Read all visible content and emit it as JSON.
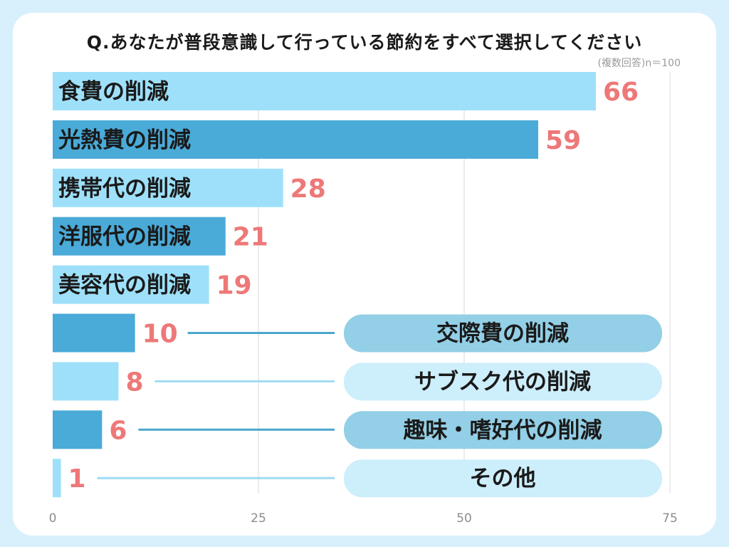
{
  "title": "Q.あなたが普段意識して行っている節約をすべて選択してください",
  "note": "(複数回答)n＝100",
  "colors": {
    "background": "#d8f0fb",
    "bar_light": "#9ee0fa",
    "bar_dark": "#4aaad8",
    "value_label": "#ee7878",
    "tag_dark": "#93cfe6",
    "tag_light": "#cdeefb",
    "leader_dark": "#4aa6cc",
    "leader_light": "#9fdcf2"
  },
  "chart_data": {
    "type": "bar",
    "orientation": "horizontal",
    "title": "Q.あなたが普段意識して行っている節約をすべて選択してください",
    "subtitle": "(複数回答)n＝100",
    "categories": [
      "食費の削減",
      "光熱費の削減",
      "携帯代の削減",
      "洋服代の削減",
      "美容代の削減",
      "交際費の削減",
      "サブスク代の削減",
      "趣味・嗜好代の削減",
      "その他"
    ],
    "values": [
      66,
      59,
      28,
      21,
      19,
      10,
      8,
      6,
      1
    ],
    "xlim": [
      0,
      75
    ],
    "x_ticks": [
      "0",
      "25",
      "50",
      "75"
    ],
    "grid": true
  }
}
